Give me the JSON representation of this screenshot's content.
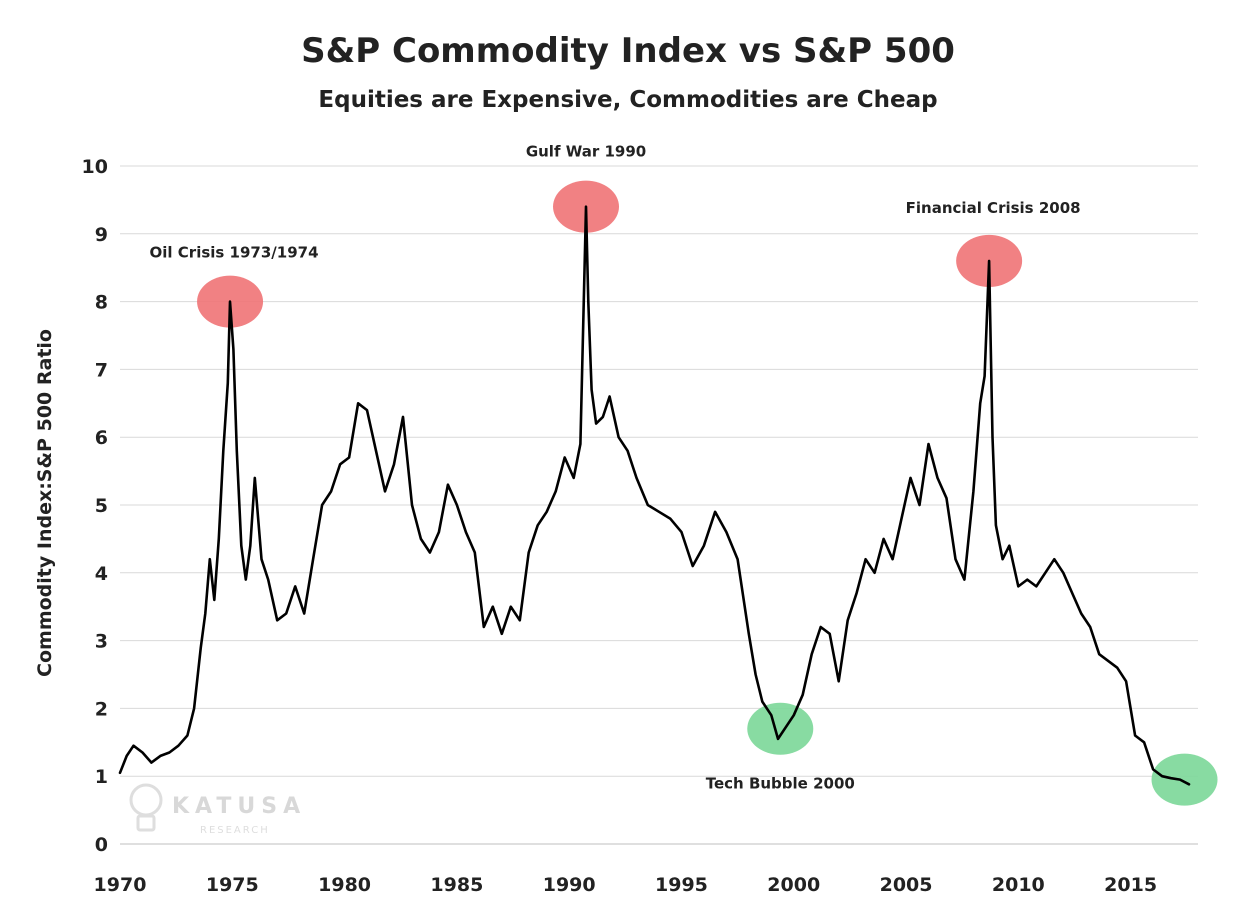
{
  "chart_data": {
    "type": "line",
    "title": "S&P Commodity Index vs S&P 500",
    "subtitle": "Equities are Expensive, Commodities are Cheap",
    "xlabel": "",
    "ylabel": "Commodity Index:S&P 500 Ratio",
    "xlim": [
      1970,
      2018
    ],
    "ylim": [
      0,
      10
    ],
    "xticks": [
      "1970",
      "1975",
      "1980",
      "1985",
      "1990",
      "1995",
      "2000",
      "2005",
      "2010",
      "2015"
    ],
    "yticks": [
      "0",
      "1",
      "2",
      "3",
      "4",
      "5",
      "6",
      "7",
      "8",
      "9",
      "10"
    ],
    "grid": "horizontal",
    "legend": "none",
    "series": [
      {
        "color": "#000000",
        "x": [
          1970.0,
          1970.3,
          1970.6,
          1971.0,
          1971.4,
          1971.8,
          1972.2,
          1972.6,
          1973.0,
          1973.3,
          1973.6,
          1973.8,
          1974.0,
          1974.2,
          1974.4,
          1974.6,
          1974.8,
          1974.9,
          1975.05,
          1975.2,
          1975.4,
          1975.6,
          1975.8,
          1976.0,
          1976.3,
          1976.6,
          1977.0,
          1977.4,
          1977.8,
          1978.2,
          1978.6,
          1979.0,
          1979.4,
          1979.8,
          1980.2,
          1980.6,
          1981.0,
          1981.4,
          1981.8,
          1982.2,
          1982.6,
          1983.0,
          1983.4,
          1983.8,
          1984.2,
          1984.6,
          1985.0,
          1985.4,
          1985.8,
          1986.2,
          1986.6,
          1987.0,
          1987.4,
          1987.8,
          1988.2,
          1988.6,
          1989.0,
          1989.4,
          1989.8,
          1990.2,
          1990.5,
          1990.75,
          1990.85,
          1991.0,
          1991.2,
          1991.5,
          1991.8,
          1992.2,
          1992.6,
          1993.0,
          1993.5,
          1994.0,
          1994.5,
          1995.0,
          1995.5,
          1996.0,
          1996.5,
          1997.0,
          1997.5,
          1998.0,
          1998.3,
          1998.6,
          1999.0,
          1999.3,
          1999.6,
          2000.0,
          2000.4,
          2000.8,
          2001.2,
          2001.6,
          2002.0,
          2002.4,
          2002.8,
          2003.2,
          2003.6,
          2004.0,
          2004.4,
          2004.8,
          2005.2,
          2005.6,
          2006.0,
          2006.4,
          2006.8,
          2007.2,
          2007.6,
          2008.0,
          2008.3,
          2008.5,
          2008.7,
          2008.85,
          2009.0,
          2009.3,
          2009.6,
          2010.0,
          2010.4,
          2010.8,
          2011.2,
          2011.6,
          2012.0,
          2012.4,
          2012.8,
          2013.2,
          2013.6,
          2014.0,
          2014.4,
          2014.8,
          2015.2,
          2015.6,
          2016.0,
          2016.4,
          2016.8,
          2017.2,
          2017.6
        ],
        "y": [
          1.05,
          1.3,
          1.45,
          1.35,
          1.2,
          1.3,
          1.35,
          1.45,
          1.6,
          2.0,
          2.9,
          3.4,
          4.2,
          3.6,
          4.5,
          5.8,
          6.8,
          8.0,
          7.3,
          5.8,
          4.4,
          3.9,
          4.4,
          5.4,
          4.2,
          3.9,
          3.3,
          3.4,
          3.8,
          3.4,
          4.2,
          5.0,
          5.2,
          5.6,
          5.7,
          6.5,
          6.4,
          5.8,
          5.2,
          5.6,
          6.3,
          5.0,
          4.5,
          4.3,
          4.6,
          5.3,
          5.0,
          4.6,
          4.3,
          3.2,
          3.5,
          3.1,
          3.5,
          3.3,
          4.3,
          4.7,
          4.9,
          5.2,
          5.7,
          5.4,
          5.9,
          9.4,
          8.0,
          6.7,
          6.2,
          6.3,
          6.6,
          6.0,
          5.8,
          5.4,
          5.0,
          4.9,
          4.8,
          4.6,
          4.1,
          4.4,
          4.9,
          4.6,
          4.2,
          3.1,
          2.5,
          2.1,
          1.9,
          1.55,
          1.7,
          1.9,
          2.2,
          2.8,
          3.2,
          3.1,
          2.4,
          3.3,
          3.7,
          4.2,
          4.0,
          4.5,
          4.2,
          4.8,
          5.4,
          5.0,
          5.9,
          5.4,
          5.1,
          4.2,
          3.9,
          5.2,
          6.5,
          6.9,
          8.6,
          6.0,
          4.7,
          4.2,
          4.4,
          3.8,
          3.9,
          3.8,
          4.0,
          4.2,
          4.0,
          3.7,
          3.4,
          3.2,
          2.8,
          2.7,
          2.6,
          2.4,
          1.6,
          1.5,
          1.1,
          1.0,
          0.97,
          0.95,
          0.88
        ]
      }
    ],
    "annotations": [
      {
        "text": "Oil Crisis 1973/1974",
        "x": 1974.9,
        "y": 8.0,
        "color": "#f07678"
      },
      {
        "text": "Gulf War 1990",
        "x": 1990.75,
        "y": 9.4,
        "color": "#f07678"
      },
      {
        "text": "Financial Crisis 2008",
        "x": 2008.7,
        "y": 8.6,
        "color": "#f07678"
      },
      {
        "text": "Tech Bubble 2000",
        "x": 1999.4,
        "y": 1.7,
        "color": "#7ed89a"
      },
      {
        "text": "",
        "x": 2017.4,
        "y": 0.95,
        "color": "#7ed89a"
      }
    ]
  },
  "watermark": {
    "brand": "KATUSA",
    "sub": "RESEARCH"
  }
}
